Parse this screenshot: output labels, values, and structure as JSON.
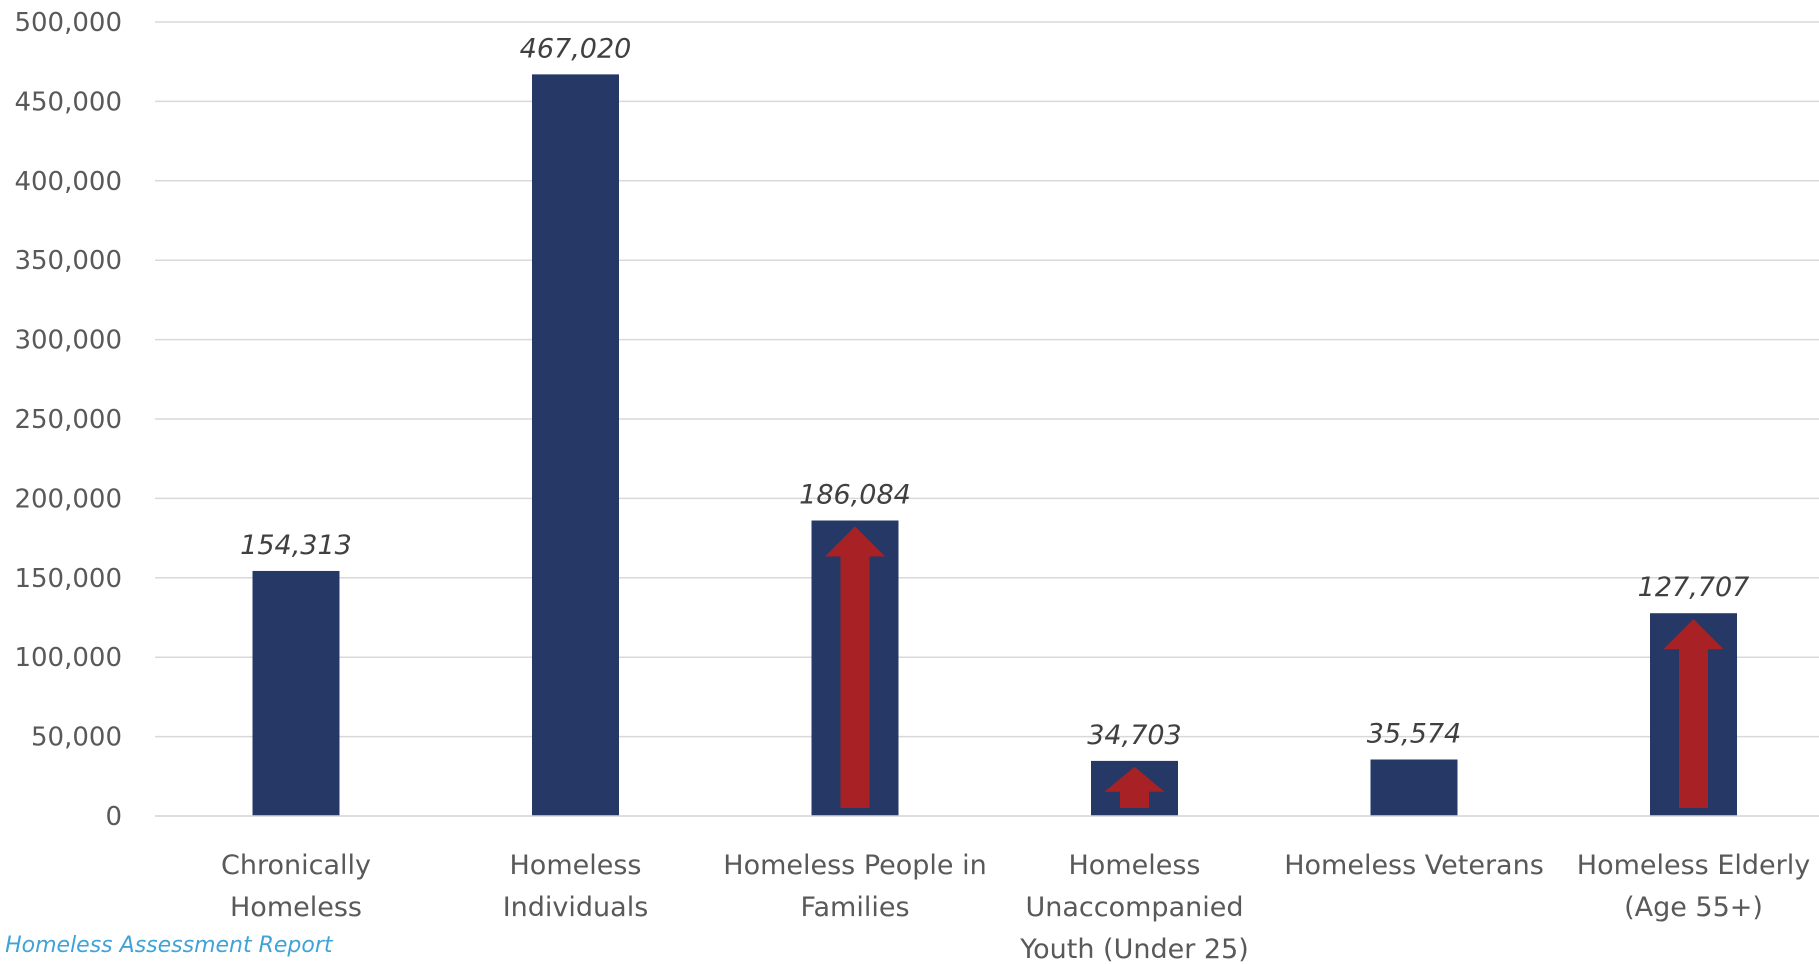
{
  "chart_data": {
    "type": "bar",
    "categories": [
      [
        "Chronically",
        "Homeless"
      ],
      [
        "Homeless",
        "Individuals"
      ],
      [
        "Homeless People in",
        "Families"
      ],
      [
        "Homeless",
        "Unaccompanied",
        "Youth (Under 25)"
      ],
      [
        "Homeless Veterans"
      ],
      [
        "Homeless Elderly",
        "(Age 55+)"
      ]
    ],
    "values": [
      154313,
      467020,
      186084,
      34703,
      35574,
      127707
    ],
    "data_labels": [
      "154,313",
      "467,020",
      "186,084",
      "34,703",
      "35,574",
      "127,707"
    ],
    "increase_arrows": [
      false,
      false,
      true,
      true,
      false,
      true
    ],
    "ylim": [
      0,
      500000
    ],
    "yticks": [
      0,
      50000,
      100000,
      150000,
      200000,
      250000,
      300000,
      350000,
      400000,
      450000,
      500000
    ],
    "ytick_labels": [
      "0",
      "50,000",
      "100,000",
      "150,000",
      "200,000",
      "250,000",
      "300,000",
      "350,000",
      "400,000",
      "450,000",
      "500,000"
    ],
    "grid": true,
    "colors": {
      "bar": "#263966",
      "arrow": "#a82124",
      "grid": "#d9d9d9",
      "text": "#595959"
    }
  },
  "source_note": "l Homeless Assessment Report"
}
